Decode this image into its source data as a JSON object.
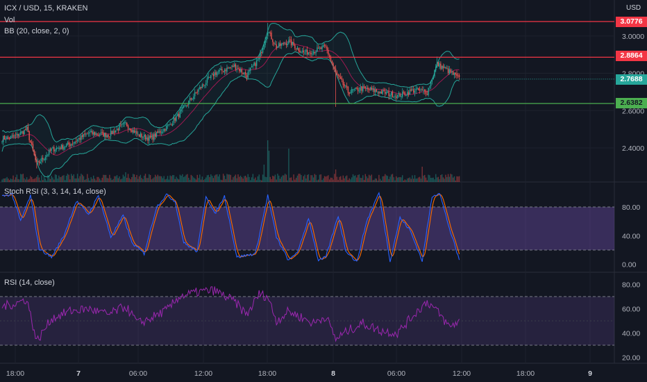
{
  "header": {
    "symbol": "ICX / USD, 15, KRAKEN",
    "vol_label": "Vol",
    "bb_label": "BB (20, close, 2, 0)",
    "currency": "USD"
  },
  "panes": {
    "stoch_title": "Stoch RSI (3, 3, 14, 14, close)",
    "rsi_title": "RSI (14, close)"
  },
  "price_tags": [
    {
      "value": "3.0776",
      "color": "#f23645",
      "text_color": "#ffffff"
    },
    {
      "value": "2.8864",
      "color": "#f23645",
      "text_color": "#ffffff"
    },
    {
      "value": "2.7688",
      "color": "#26a69a",
      "text_color": "#ffffff"
    },
    {
      "value": "2.6382",
      "color": "#4caf50",
      "text_color": "#131722"
    }
  ],
  "colors": {
    "background": "#131722",
    "up": "#26a69a",
    "down": "#ef5350",
    "bb_band": "#26a69a",
    "bb_basis": "#c2185b",
    "resistance": "#f23645",
    "support": "#4caf50",
    "stoch_k": "#2962ff",
    "stoch_d": "#ff6d00",
    "stoch_fill": "#7e57c2",
    "rsi_line": "#9c27b0"
  },
  "chart_data": {
    "type": "candlestick",
    "price_axis": {
      "ticks": [
        "3.0000",
        "2.8000",
        "2.6000",
        "2.4000"
      ],
      "range": [
        2.13,
        3.19
      ]
    },
    "time_axis": {
      "ticks": [
        "18:00",
        "7",
        "06:00",
        "12:00",
        "18:00",
        "8",
        "06:00",
        "12:00",
        "18:00",
        "9"
      ]
    },
    "horizontal_lines": [
      {
        "price": 3.0776,
        "color": "resistance"
      },
      {
        "price": 2.8864,
        "color": "resistance"
      },
      {
        "price": 2.6382,
        "color": "support"
      }
    ],
    "current_price": 2.7688,
    "close_anchors": [
      [
        0,
        2.45
      ],
      [
        10,
        2.46
      ],
      [
        20,
        2.5
      ],
      [
        28,
        2.31
      ],
      [
        40,
        2.39
      ],
      [
        55,
        2.42
      ],
      [
        70,
        2.48
      ],
      [
        86,
        2.47
      ],
      [
        100,
        2.53
      ],
      [
        110,
        2.47
      ],
      [
        120,
        2.45
      ],
      [
        135,
        2.52
      ],
      [
        143,
        2.58
      ],
      [
        160,
        2.72
      ],
      [
        172,
        2.8
      ],
      [
        188,
        2.84
      ],
      [
        198,
        2.79
      ],
      [
        208,
        2.88
      ],
      [
        215,
        3.03
      ],
      [
        222,
        2.94
      ],
      [
        232,
        2.97
      ],
      [
        244,
        2.91
      ],
      [
        252,
        2.92
      ],
      [
        262,
        2.94
      ],
      [
        270,
        2.8
      ],
      [
        280,
        2.7
      ],
      [
        292,
        2.72
      ],
      [
        306,
        2.7
      ],
      [
        320,
        2.68
      ],
      [
        334,
        2.71
      ],
      [
        344,
        2.7
      ],
      [
        352,
        2.85
      ],
      [
        362,
        2.81
      ],
      [
        370,
        2.77
      ]
    ],
    "stoch_rsi": {
      "levels": [
        80,
        20
      ],
      "ticks": [
        "80.00",
        "40.00",
        "0.00"
      ],
      "range": [
        -6,
        108
      ],
      "k_anchors": [
        [
          0,
          95
        ],
        [
          8,
          98
        ],
        [
          15,
          60
        ],
        [
          23,
          96
        ],
        [
          30,
          22
        ],
        [
          40,
          10
        ],
        [
          50,
          40
        ],
        [
          60,
          88
        ],
        [
          70,
          70
        ],
        [
          78,
          96
        ],
        [
          88,
          38
        ],
        [
          98,
          68
        ],
        [
          105,
          30
        ],
        [
          115,
          15
        ],
        [
          125,
          80
        ],
        [
          133,
          97
        ],
        [
          140,
          88
        ],
        [
          147,
          30
        ],
        [
          158,
          18
        ],
        [
          165,
          96
        ],
        [
          172,
          70
        ],
        [
          180,
          95
        ],
        [
          190,
          10
        ],
        [
          205,
          15
        ],
        [
          215,
          96
        ],
        [
          222,
          38
        ],
        [
          232,
          5
        ],
        [
          240,
          20
        ],
        [
          248,
          65
        ],
        [
          256,
          5
        ],
        [
          262,
          10
        ],
        [
          272,
          68
        ],
        [
          278,
          20
        ],
        [
          287,
          3
        ],
        [
          295,
          60
        ],
        [
          305,
          100
        ],
        [
          314,
          5
        ],
        [
          322,
          65
        ],
        [
          330,
          48
        ],
        [
          340,
          5
        ],
        [
          348,
          95
        ],
        [
          354,
          100
        ],
        [
          362,
          50
        ],
        [
          370,
          6
        ]
      ]
    },
    "rsi": {
      "levels": [
        70,
        30
      ],
      "ticks": [
        "80.00",
        "60.00",
        "40.00",
        "20.00"
      ],
      "range": [
        17,
        83
      ],
      "anchors": [
        [
          0,
          62
        ],
        [
          10,
          64
        ],
        [
          20,
          68
        ],
        [
          28,
          33
        ],
        [
          40,
          52
        ],
        [
          55,
          58
        ],
        [
          70,
          60
        ],
        [
          86,
          55
        ],
        [
          100,
          62
        ],
        [
          110,
          48
        ],
        [
          120,
          52
        ],
        [
          135,
          60
        ],
        [
          143,
          70
        ],
        [
          160,
          74
        ],
        [
          172,
          75
        ],
        [
          188,
          66
        ],
        [
          198,
          55
        ],
        [
          208,
          72
        ],
        [
          215,
          70
        ],
        [
          222,
          50
        ],
        [
          232,
          58
        ],
        [
          244,
          52
        ],
        [
          252,
          48
        ],
        [
          262,
          54
        ],
        [
          270,
          35
        ],
        [
          280,
          42
        ],
        [
          292,
          48
        ],
        [
          306,
          42
        ],
        [
          320,
          40
        ],
        [
          334,
          56
        ],
        [
          344,
          66
        ],
        [
          352,
          58
        ],
        [
          362,
          45
        ],
        [
          370,
          50
        ]
      ]
    }
  }
}
